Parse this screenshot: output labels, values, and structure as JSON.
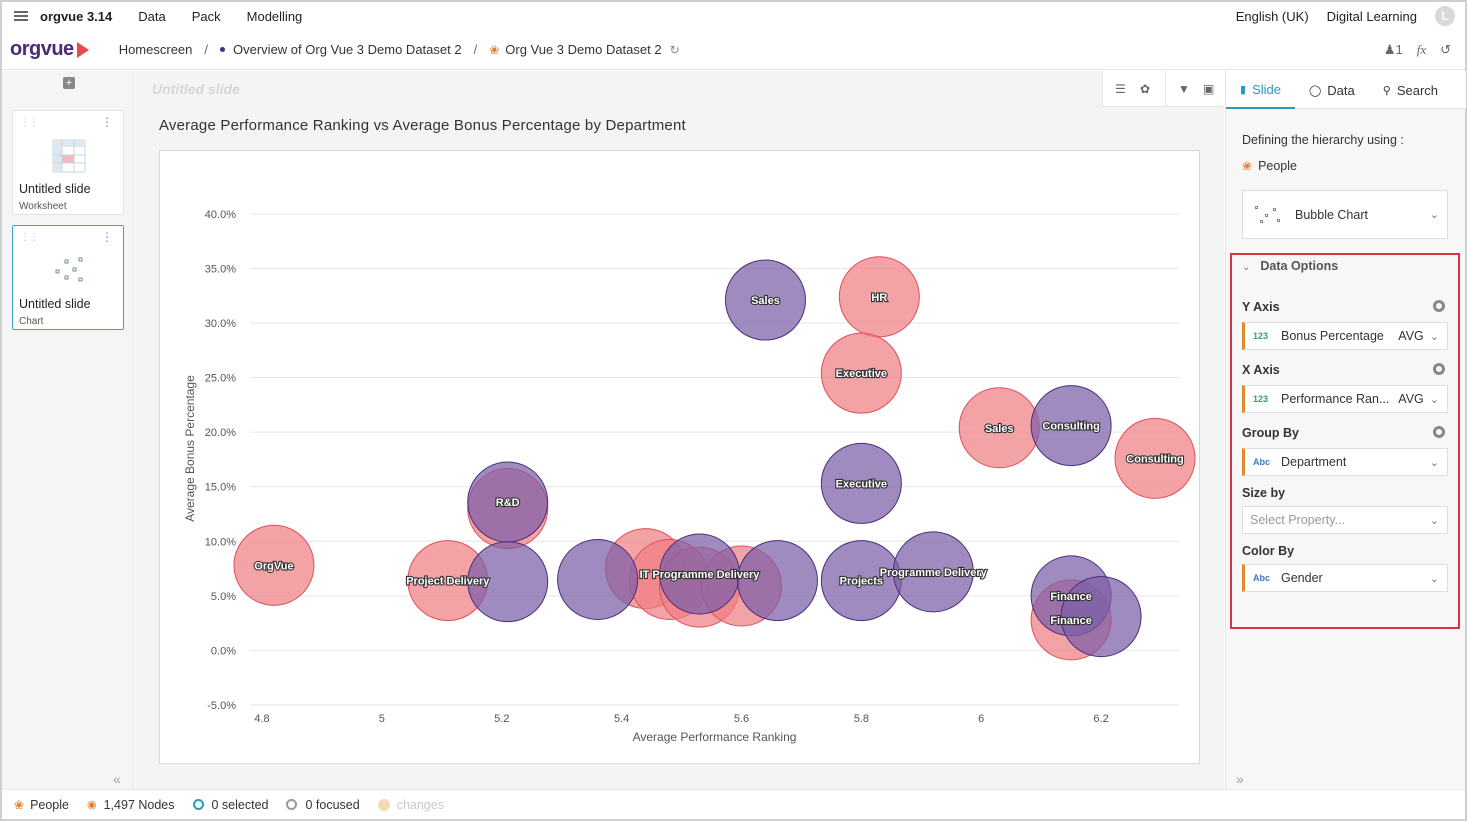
{
  "app": {
    "name": "orgvue 3.14",
    "logo": "orgvue"
  },
  "menu": [
    "Data",
    "Pack",
    "Modelling"
  ],
  "top_right": {
    "language": "English (UK)",
    "org": "Digital Learning",
    "avatar_initial": "L"
  },
  "breadcrumb": {
    "home": "Homescreen",
    "overview": "Overview of Org Vue 3 Demo Dataset 2",
    "dataset": "Org Vue 3 Demo Dataset 2"
  },
  "crumb_right": {
    "users_count": "1",
    "fx": "fx"
  },
  "slides": [
    {
      "title": "Untitled slide",
      "type": "Worksheet"
    },
    {
      "title": "Untitled slide",
      "type": "Chart"
    }
  ],
  "canvas": {
    "slide_name": "Untitled slide",
    "chart_title": "Average Performance Ranking vs Average Bonus Percentage by Department"
  },
  "panel": {
    "tabs": [
      "Slide",
      "Data",
      "Search"
    ],
    "hierarchy_label": "Defining the hierarchy using :",
    "hierarchy_value": "People",
    "viz_type": "Bubble Chart",
    "data_options": "Data Options",
    "y_axis": {
      "label": "Y Axis",
      "type": "123",
      "field": "Bonus Percentage",
      "agg": "AVG"
    },
    "x_axis": {
      "label": "X Axis",
      "type": "123",
      "field": "Performance Ran...",
      "agg": "AVG"
    },
    "group_by": {
      "label": "Group By",
      "type": "Abc",
      "field": "Department"
    },
    "size_by": {
      "label": "Size by",
      "placeholder": "Select Property..."
    },
    "color_by": {
      "label": "Color By",
      "type": "Abc",
      "field": "Gender"
    }
  },
  "status": {
    "people": "People",
    "nodes": "1,497 Nodes",
    "selected": "0 selected",
    "focused": "0 focused",
    "changes": "changes"
  },
  "chart_data": {
    "type": "scatter",
    "xlabel": "Average Performance Ranking",
    "ylabel": "Average Bonus Percentage",
    "xlim": [
      4.78,
      6.33
    ],
    "ylim": [
      -5,
      42
    ],
    "xticks": [
      "4.8",
      "5",
      "5.2",
      "5.4",
      "5.6",
      "5.8",
      "6",
      "6.2"
    ],
    "yticks": [
      "40.0%",
      "35.0%",
      "30.0%",
      "25.0%",
      "20.0%",
      "15.0%",
      "10.0%",
      "5.0%",
      "0.0%",
      "-5.0%"
    ],
    "grid": true,
    "colors": {
      "red": "#ef7e84",
      "purple": "#7b5ea7"
    },
    "series": [
      {
        "color": "red",
        "points": [
          {
            "x": 4.82,
            "y": 7.8,
            "label": "OrgVue"
          },
          {
            "x": 5.11,
            "y": 6.4,
            "label": "Project Delivery"
          },
          {
            "x": 5.21,
            "y": 13.0,
            "label": ""
          },
          {
            "x": 5.44,
            "y": 7.5,
            "label": ""
          },
          {
            "x": 5.48,
            "y": 6.5,
            "label": ""
          },
          {
            "x": 5.53,
            "y": 5.8,
            "label": ""
          },
          {
            "x": 5.6,
            "y": 5.9,
            "label": ""
          },
          {
            "x": 5.83,
            "y": 32.4,
            "label": "HR"
          },
          {
            "x": 5.8,
            "y": 25.4,
            "label": "Executive"
          },
          {
            "x": 6.03,
            "y": 20.4,
            "label": "Sales"
          },
          {
            "x": 6.29,
            "y": 17.6,
            "label": "Consulting"
          },
          {
            "x": 6.15,
            "y": 2.8,
            "label": "Finance"
          }
        ]
      },
      {
        "color": "purple",
        "points": [
          {
            "x": 5.21,
            "y": 6.3,
            "label": ""
          },
          {
            "x": 5.21,
            "y": 13.6,
            "label": "R&D"
          },
          {
            "x": 5.36,
            "y": 6.5,
            "label": ""
          },
          {
            "x": 5.53,
            "y": 7.0,
            "label": "IT Programme Delivery"
          },
          {
            "x": 5.66,
            "y": 6.4,
            "label": ""
          },
          {
            "x": 5.8,
            "y": 6.4,
            "label": "Projects"
          },
          {
            "x": 5.92,
            "y": 7.2,
            "label": "Programme Delivery"
          },
          {
            "x": 5.64,
            "y": 32.1,
            "label": "Sales"
          },
          {
            "x": 5.8,
            "y": 15.3,
            "label": "Executive"
          },
          {
            "x": 6.15,
            "y": 20.6,
            "label": "Consulting"
          },
          {
            "x": 6.15,
            "y": 5.0,
            "label": "Finance"
          },
          {
            "x": 6.2,
            "y": 3.1,
            "label": ""
          }
        ]
      }
    ]
  }
}
